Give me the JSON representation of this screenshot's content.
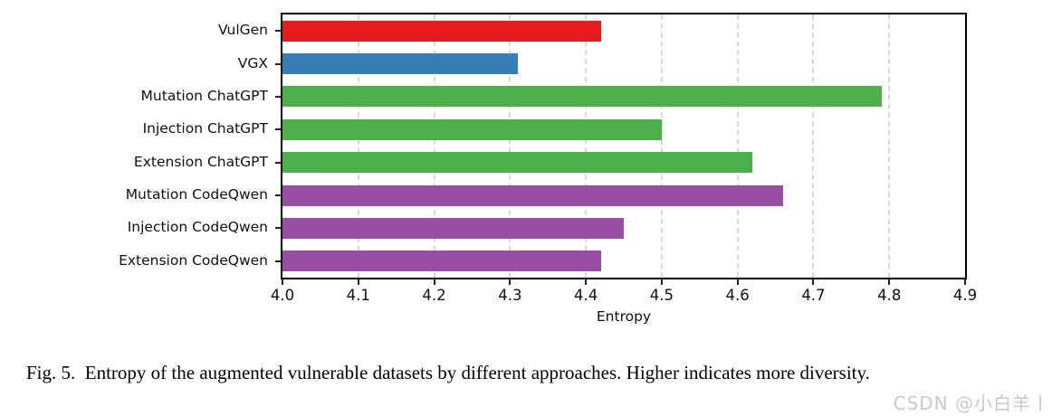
{
  "chart_data": {
    "type": "bar",
    "orientation": "horizontal",
    "title": "",
    "xlabel": "Entropy",
    "ylabel": "",
    "xlim": [
      4.0,
      4.9
    ],
    "xticks": [
      "4.0",
      "4.1",
      "4.2",
      "4.3",
      "4.4",
      "4.5",
      "4.6",
      "4.7",
      "4.8",
      "4.9"
    ],
    "grid": "vertical-dashed",
    "legend": "none",
    "categories": [
      "VulGen",
      "VGX",
      "Mutation ChatGPT",
      "Injection ChatGPT",
      "Extension ChatGPT",
      "Mutation CodeQwen",
      "Injection CodeQwen",
      "Extension CodeQwen"
    ],
    "values": [
      4.42,
      4.31,
      4.79,
      4.5,
      4.62,
      4.66,
      4.45,
      4.42
    ],
    "bar_colors": [
      "#e41a1c",
      "#377eb8",
      "#4daf4a",
      "#4daf4a",
      "#4daf4a",
      "#984ea3",
      "#984ea3",
      "#984ea3"
    ]
  },
  "caption": "Fig. 5.  Entropy of the augmented vulnerable datasets by different approaches. Higher indicates more diversity.",
  "watermark": "CSDN @小白羊丨",
  "colors": {
    "background": "#ffffff",
    "spine": "#000000",
    "grid": "#d9d9d9",
    "tick": "#222222",
    "text": "#111111",
    "watermark": "#c9c9c9"
  }
}
